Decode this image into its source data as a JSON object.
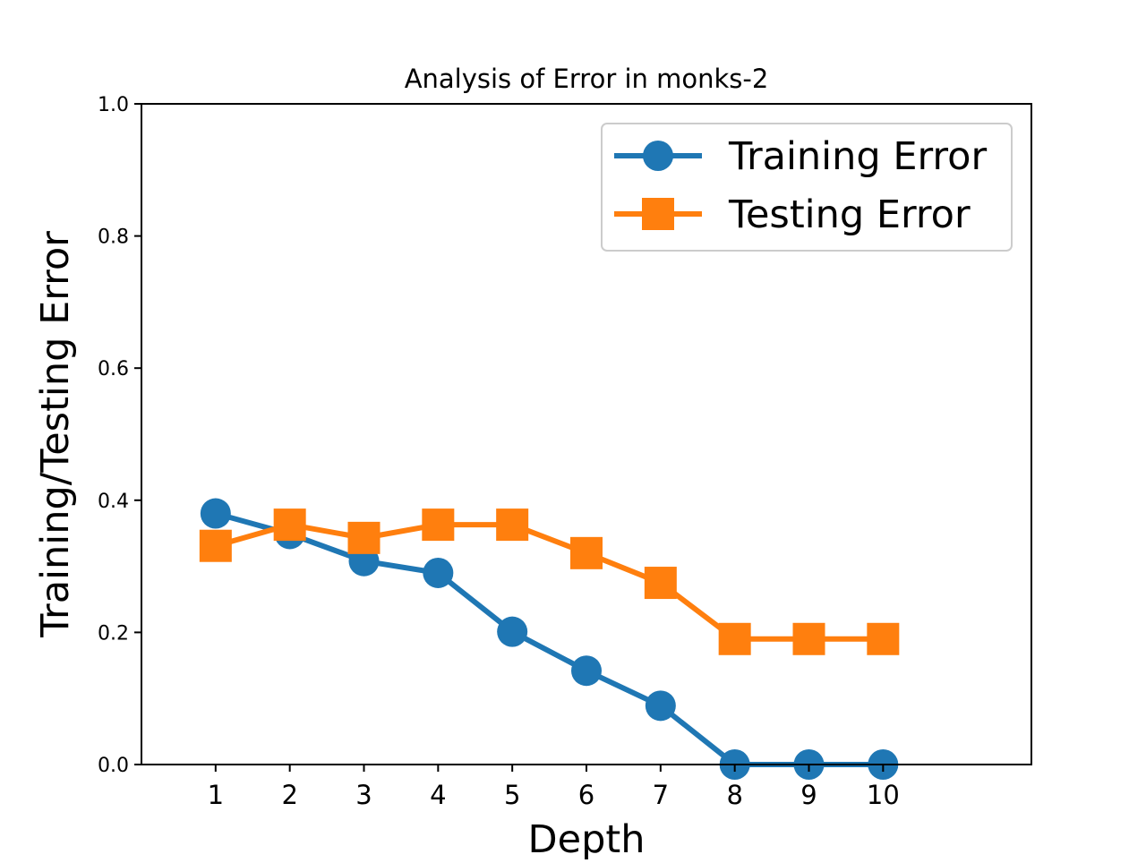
{
  "chart_data": {
    "type": "line",
    "title": "Analysis of Error in monks-2",
    "xlabel": "Depth",
    "ylabel": "Training/Testing Error",
    "x": [
      1,
      2,
      3,
      4,
      5,
      6,
      7,
      8,
      9,
      10
    ],
    "x_tick_labels": [
      "1",
      "2",
      "3",
      "4",
      "5",
      "6",
      "7",
      "8",
      "9",
      "10"
    ],
    "y_tick_labels": [
      "0.0",
      "0.2",
      "0.4",
      "0.6",
      "0.8",
      "1.0"
    ],
    "y_ticks": [
      0.0,
      0.2,
      0.4,
      0.6,
      0.8,
      1.0
    ],
    "xlim": [
      0,
      12
    ],
    "ylim": [
      0,
      1.0
    ],
    "grid": false,
    "legend_position": "top-right",
    "series": [
      {
        "name": "Training Error",
        "color": "#1f77b4",
        "marker": "circle",
        "values": [
          0.38,
          0.349,
          0.308,
          0.29,
          0.201,
          0.142,
          0.089,
          0.0,
          0.0,
          0.0
        ]
      },
      {
        "name": "Testing Error",
        "color": "#ff7f0e",
        "marker": "square",
        "values": [
          0.331,
          0.363,
          0.343,
          0.363,
          0.363,
          0.32,
          0.275,
          0.19,
          0.19,
          0.19
        ]
      }
    ]
  }
}
